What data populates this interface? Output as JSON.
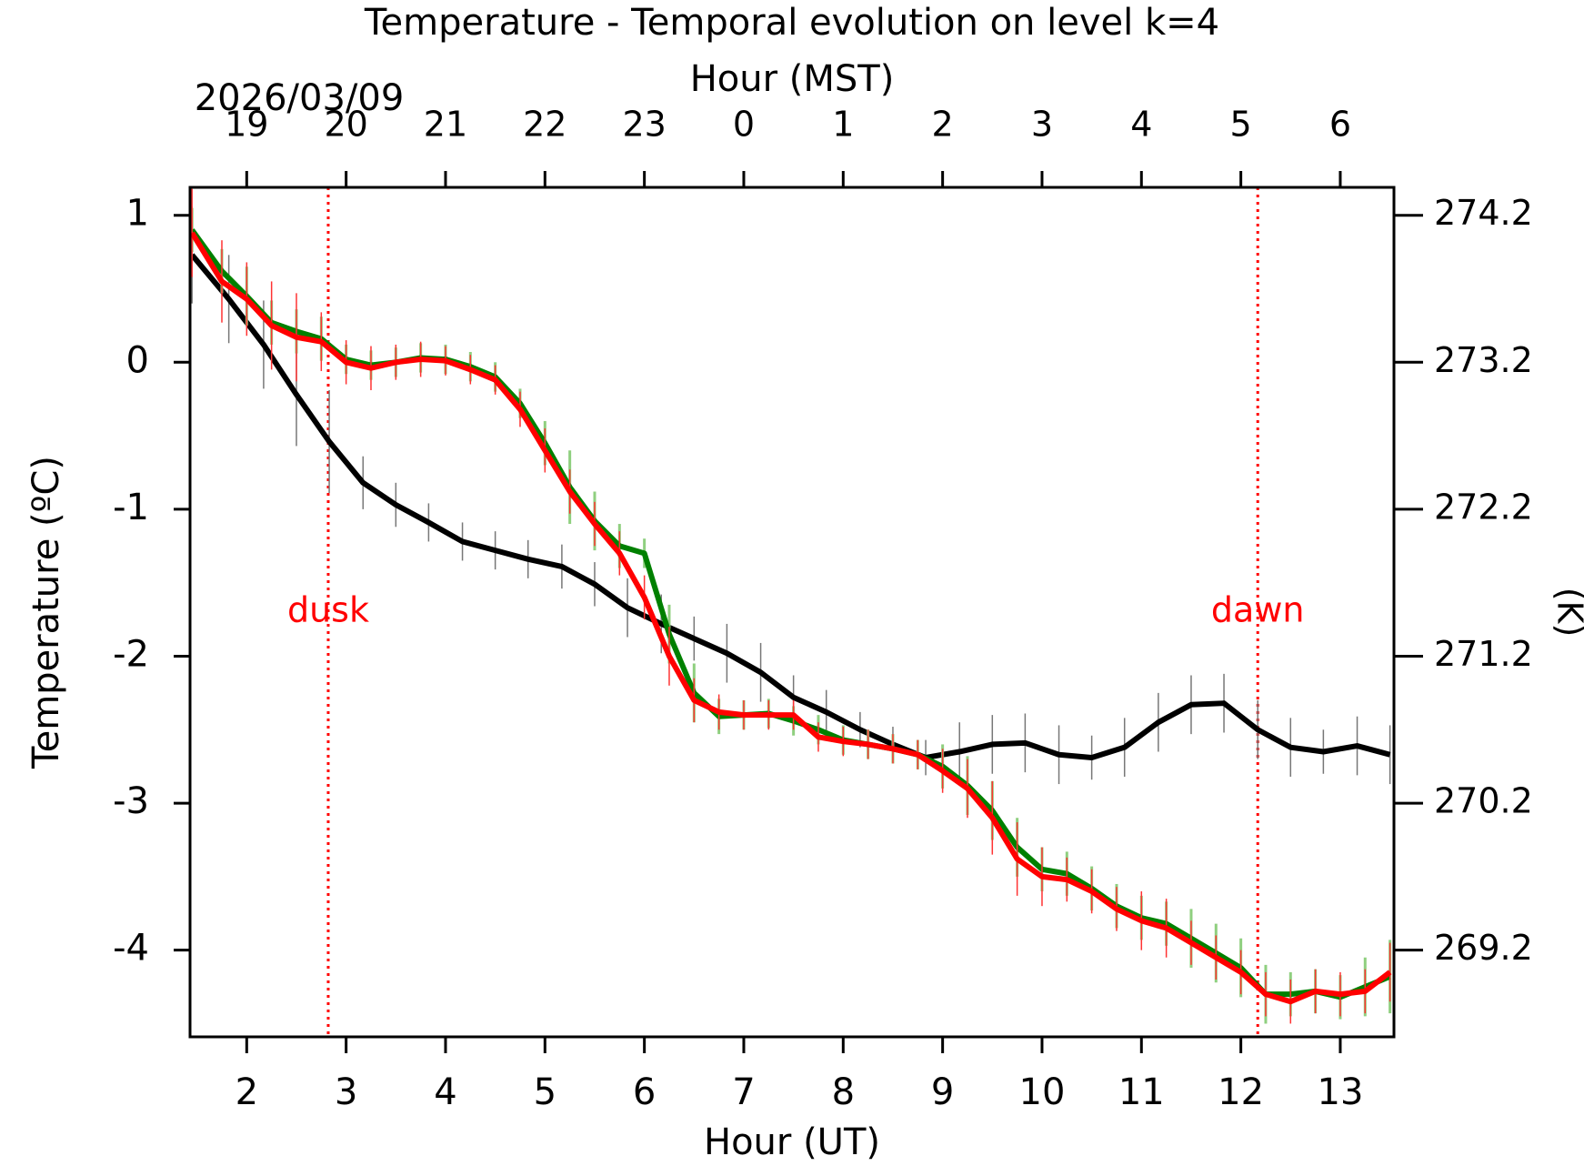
{
  "chart_data": {
    "type": "line",
    "title": "Temperature - Temporal evolution on level k=4",
    "xlabel": "Hour (UT)",
    "ylabel": "Temperature (ºC)",
    "x2label": "Hour (MST)",
    "y2label": "(K)",
    "date_label": "2026/03/09",
    "xlim": [
      1.43,
      13.54
    ],
    "ylim": [
      -4.59,
      1.19
    ],
    "y2lim": [
      268.61,
      274.39
    ],
    "xticks": [
      2,
      3,
      4,
      5,
      6,
      7,
      8,
      9,
      10,
      11,
      12,
      13
    ],
    "x2ticks": [
      {
        "value": 2,
        "label": "19"
      },
      {
        "value": 3,
        "label": "20"
      },
      {
        "value": 4,
        "label": "21"
      },
      {
        "value": 5,
        "label": "22"
      },
      {
        "value": 6,
        "label": "23"
      },
      {
        "value": 7,
        "label": "0"
      },
      {
        "value": 8,
        "label": "1"
      },
      {
        "value": 9,
        "label": "2"
      },
      {
        "value": 10,
        "label": "3"
      },
      {
        "value": 11,
        "label": "4"
      },
      {
        "value": 12,
        "label": "5"
      },
      {
        "value": 13,
        "label": "6"
      }
    ],
    "yticks": [
      -4,
      -3,
      -2,
      -1,
      0,
      1
    ],
    "y2ticks": [
      269.2,
      270.2,
      271.2,
      272.2,
      273.2,
      274.2
    ],
    "annotations": [
      {
        "text": "dusk",
        "x": 2.82,
        "color": "#ff0000"
      },
      {
        "text": "dawn",
        "x": 12.17,
        "color": "#ff0000"
      }
    ],
    "series": [
      {
        "color": "#000000",
        "error_color": "#777777",
        "x": [
          1.45,
          1.82,
          2.17,
          2.5,
          2.83,
          3.17,
          3.5,
          3.83,
          4.17,
          4.5,
          4.83,
          5.17,
          5.5,
          5.83,
          6.17,
          6.5,
          6.83,
          7.17,
          7.5,
          7.83,
          8.17,
          8.5,
          8.83,
          9.17,
          9.5,
          9.83,
          10.17,
          10.5,
          10.83,
          11.17,
          11.5,
          11.83,
          12.17,
          12.5,
          12.83,
          13.17,
          13.5
        ],
        "values": [
          0.73,
          0.43,
          0.12,
          -0.22,
          -0.54,
          -0.82,
          -0.97,
          -1.09,
          -1.22,
          -1.28,
          -1.34,
          -1.39,
          -1.51,
          -1.67,
          -1.78,
          -1.88,
          -1.98,
          -2.11,
          -2.28,
          -2.38,
          -2.5,
          -2.6,
          -2.69,
          -2.65,
          -2.6,
          -2.59,
          -2.67,
          -2.69,
          -2.62,
          -2.45,
          -2.33,
          -2.32,
          -2.5,
          -2.62,
          -2.65,
          -2.61,
          -2.67
        ],
        "errors": [
          0.33,
          0.3,
          0.3,
          0.35,
          0.35,
          0.18,
          0.15,
          0.13,
          0.13,
          0.13,
          0.13,
          0.15,
          0.15,
          0.2,
          0.2,
          0.15,
          0.2,
          0.2,
          0.15,
          0.15,
          0.12,
          0.12,
          0.12,
          0.2,
          0.2,
          0.2,
          0.2,
          0.15,
          0.2,
          0.2,
          0.2,
          0.2,
          0.2,
          0.2,
          0.15,
          0.2,
          0.2
        ]
      },
      {
        "color": "#008000",
        "error_color": "#8fcf7f",
        "x": [
          1.45,
          1.75,
          2.0,
          2.25,
          2.5,
          2.75,
          3.0,
          3.25,
          3.5,
          3.75,
          4.0,
          4.25,
          4.5,
          4.75,
          5.0,
          5.25,
          5.5,
          5.75,
          6.0,
          6.25,
          6.5,
          6.75,
          7.0,
          7.25,
          7.5,
          7.75,
          8.0,
          8.25,
          8.5,
          8.75,
          9.0,
          9.25,
          9.5,
          9.75,
          10.0,
          10.25,
          10.5,
          10.75,
          11.0,
          11.25,
          11.5,
          11.75,
          12.0,
          12.25,
          12.5,
          12.75,
          13.0,
          13.25,
          13.5
        ],
        "values": [
          0.9,
          0.62,
          0.45,
          0.27,
          0.21,
          0.16,
          0.02,
          -0.02,
          0.0,
          0.03,
          0.02,
          -0.03,
          -0.1,
          -0.28,
          -0.55,
          -0.85,
          -1.08,
          -1.25,
          -1.3,
          -1.85,
          -2.25,
          -2.41,
          -2.4,
          -2.39,
          -2.44,
          -2.5,
          -2.57,
          -2.6,
          -2.63,
          -2.67,
          -2.75,
          -2.88,
          -3.05,
          -3.3,
          -3.45,
          -3.48,
          -3.58,
          -3.7,
          -3.78,
          -3.82,
          -3.92,
          -4.02,
          -4.12,
          -4.3,
          -4.3,
          -4.28,
          -4.32,
          -4.25,
          -4.18
        ],
        "errors": [
          0.15,
          0.15,
          0.2,
          0.15,
          0.15,
          0.15,
          0.1,
          0.1,
          0.1,
          0.1,
          0.1,
          0.1,
          0.1,
          0.1,
          0.15,
          0.25,
          0.2,
          0.15,
          0.1,
          0.2,
          0.2,
          0.12,
          0.1,
          0.1,
          0.1,
          0.1,
          0.1,
          0.1,
          0.1,
          0.1,
          0.15,
          0.2,
          0.2,
          0.2,
          0.15,
          0.15,
          0.15,
          0.15,
          0.15,
          0.15,
          0.2,
          0.2,
          0.2,
          0.2,
          0.15,
          0.15,
          0.15,
          0.2,
          0.25
        ]
      },
      {
        "color": "#ff0000",
        "error_color": "#ff3333",
        "x": [
          1.45,
          1.75,
          2.0,
          2.25,
          2.5,
          2.75,
          3.0,
          3.25,
          3.5,
          3.75,
          4.0,
          4.25,
          4.5,
          4.75,
          5.0,
          5.25,
          5.5,
          5.75,
          6.0,
          6.25,
          6.5,
          6.75,
          7.0,
          7.25,
          7.5,
          7.75,
          8.0,
          8.25,
          8.5,
          8.75,
          9.0,
          9.25,
          9.5,
          9.75,
          10.0,
          10.25,
          10.5,
          10.75,
          11.0,
          11.25,
          11.5,
          11.75,
          12.0,
          12.25,
          12.5,
          12.75,
          13.0,
          13.25,
          13.5
        ],
        "values": [
          0.88,
          0.55,
          0.43,
          0.25,
          0.17,
          0.14,
          0.0,
          -0.04,
          0.0,
          0.02,
          0.01,
          -0.05,
          -0.12,
          -0.32,
          -0.6,
          -0.88,
          -1.1,
          -1.3,
          -1.6,
          -2.0,
          -2.3,
          -2.38,
          -2.4,
          -2.4,
          -2.4,
          -2.55,
          -2.58,
          -2.6,
          -2.63,
          -2.67,
          -2.78,
          -2.9,
          -3.1,
          -3.38,
          -3.5,
          -3.52,
          -3.6,
          -3.72,
          -3.8,
          -3.85,
          -3.95,
          -4.05,
          -4.15,
          -4.3,
          -4.35,
          -4.28,
          -4.3,
          -4.28,
          -4.15
        ],
        "errors": [
          0.3,
          0.28,
          0.25,
          0.3,
          0.3,
          0.2,
          0.15,
          0.15,
          0.12,
          0.12,
          0.1,
          0.1,
          0.1,
          0.12,
          0.15,
          0.15,
          0.15,
          0.15,
          0.15,
          0.2,
          0.15,
          0.12,
          0.1,
          0.1,
          0.1,
          0.1,
          0.1,
          0.1,
          0.1,
          0.1,
          0.15,
          0.2,
          0.25,
          0.25,
          0.2,
          0.15,
          0.15,
          0.15,
          0.2,
          0.2,
          0.15,
          0.15,
          0.15,
          0.15,
          0.15,
          0.15,
          0.15,
          0.15,
          0.2
        ]
      }
    ]
  }
}
